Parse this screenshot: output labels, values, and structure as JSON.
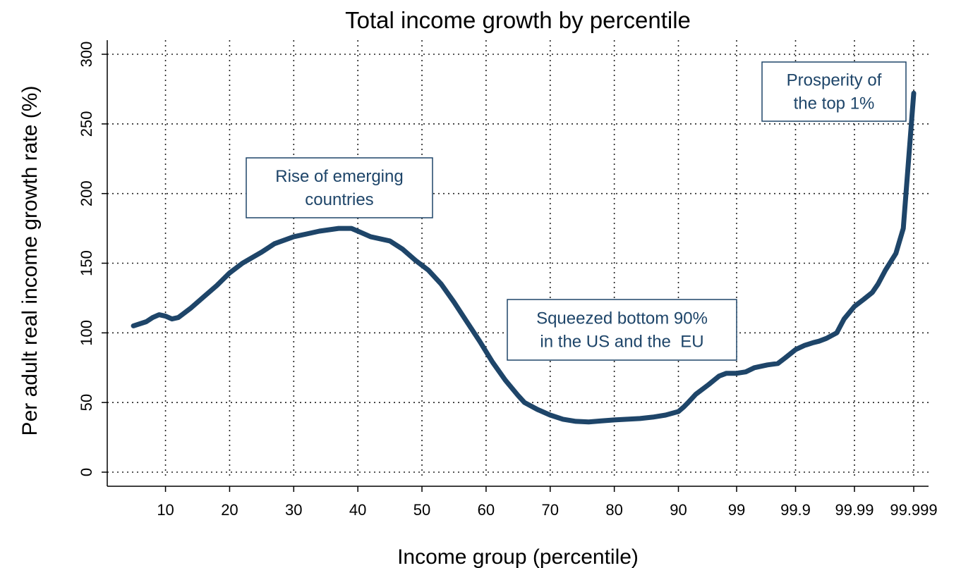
{
  "chart_data": {
    "type": "line",
    "title": "Total income growth by percentile",
    "xlabel": "Income group (percentile)",
    "ylabel": "Per adult real income growth rate (%)",
    "ylim": [
      0,
      300
    ],
    "yticks": [
      0,
      50,
      100,
      150,
      200,
      250,
      300
    ],
    "grid": true,
    "x_tick_labels": [
      "10",
      "20",
      "30",
      "40",
      "50",
      "60",
      "70",
      "80",
      "90",
      "99",
      "99.9",
      "99.99",
      "99.999"
    ],
    "line_color": "#1e4569",
    "series": [
      {
        "points": [
          [
            "5",
            105
          ],
          [
            "7",
            108
          ],
          [
            "8",
            111
          ],
          [
            "9",
            113
          ],
          [
            "10",
            112
          ],
          [
            "11",
            110
          ],
          [
            "12",
            111
          ],
          [
            "14",
            118
          ],
          [
            "16",
            126
          ],
          [
            "18",
            134
          ],
          [
            "20",
            143
          ],
          [
            "22",
            150
          ],
          [
            "25",
            158
          ],
          [
            "27",
            164
          ],
          [
            "30",
            169
          ],
          [
            "32",
            171
          ],
          [
            "34",
            173
          ],
          [
            "37",
            175
          ],
          [
            "39",
            175
          ],
          [
            "40",
            173
          ],
          [
            "42",
            169
          ],
          [
            "45",
            166
          ],
          [
            "47",
            160
          ],
          [
            "49",
            152
          ],
          [
            "51",
            145
          ],
          [
            "53",
            135
          ],
          [
            "55",
            122
          ],
          [
            "57",
            108
          ],
          [
            "59",
            94
          ],
          [
            "61",
            79
          ],
          [
            "63",
            66
          ],
          [
            "65",
            55
          ],
          [
            "66",
            50
          ],
          [
            "68",
            45
          ],
          [
            "70",
            41
          ],
          [
            "72",
            38
          ],
          [
            "74",
            36.5
          ],
          [
            "76",
            36
          ],
          [
            "78",
            36.8
          ],
          [
            "80",
            37.5
          ],
          [
            "82",
            38
          ],
          [
            "84",
            38.5
          ],
          [
            "86",
            39.5
          ],
          [
            "88",
            41
          ],
          [
            "90",
            43.5
          ],
          [
            "92",
            47
          ],
          [
            "93",
            49.5
          ],
          [
            "95",
            56
          ],
          [
            "97",
            63
          ],
          [
            "98",
            69
          ],
          [
            "98.5",
            71
          ],
          [
            "99",
            71
          ],
          [
            "99.3",
            72
          ],
          [
            "99.5",
            75
          ],
          [
            "99.7",
            77
          ],
          [
            "99.8",
            78
          ],
          [
            "99.85",
            82
          ],
          [
            "99.9",
            88
          ],
          [
            "99.93",
            91
          ],
          [
            "99.95",
            93
          ],
          [
            "99.96",
            94
          ],
          [
            "99.97",
            96
          ],
          [
            "99.98",
            100
          ],
          [
            "99.985",
            110
          ],
          [
            "99.99",
            119
          ],
          [
            "99.993",
            124
          ],
          [
            "99.995",
            129
          ],
          [
            "99.996",
            135
          ],
          [
            "99.997",
            145
          ],
          [
            "99.998",
            157
          ],
          [
            "99.9985",
            175
          ],
          [
            "99.999",
            272
          ]
        ]
      }
    ],
    "annotations": [
      {
        "lines": [
          "Rise of emerging",
          "countries"
        ]
      },
      {
        "lines": [
          "Squeezed bottom 90%",
          "in the US and the  EU"
        ]
      },
      {
        "lines": [
          "Prosperity of",
          "the top 1%"
        ]
      }
    ]
  }
}
